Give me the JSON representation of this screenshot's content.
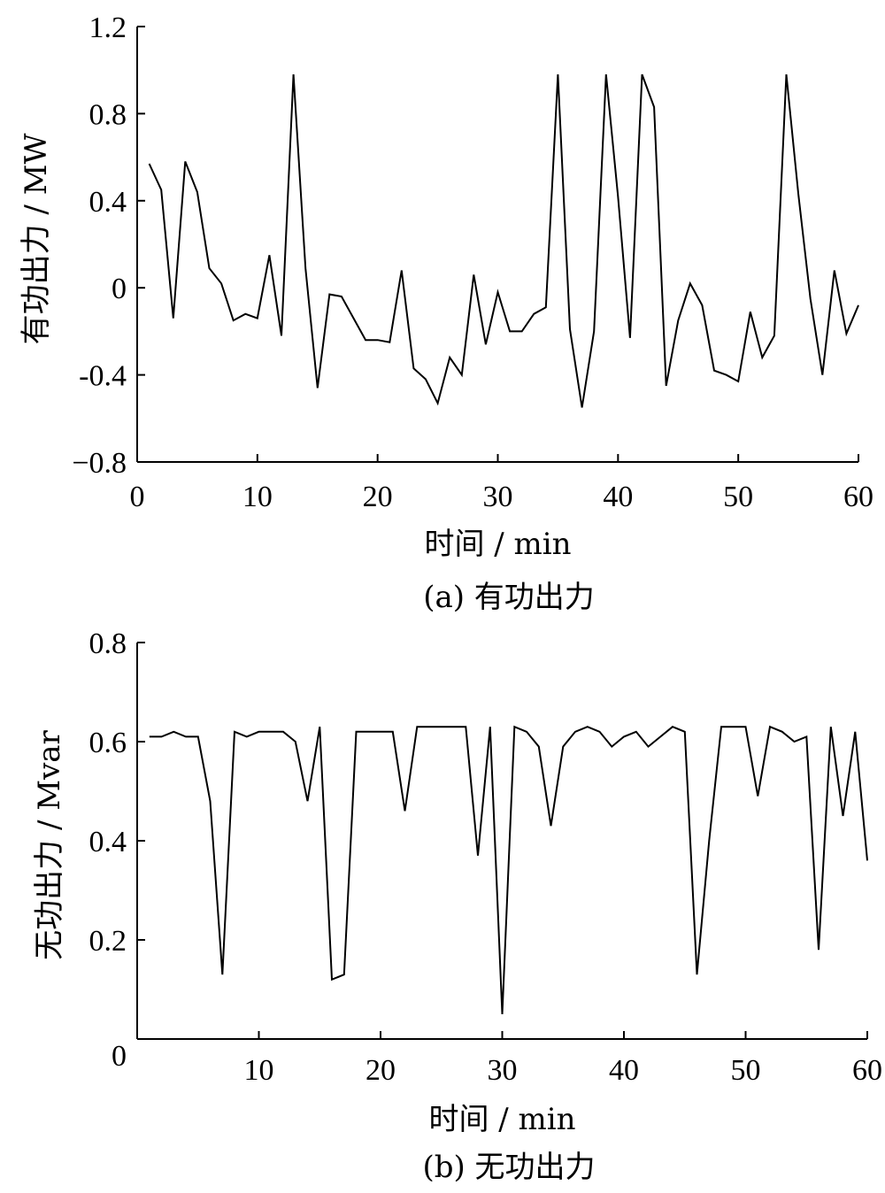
{
  "chart_data": [
    {
      "type": "line",
      "caption": "(a)  有功出力",
      "xlabel": "时间 / min",
      "ylabel": "有功出力 / MW",
      "xlim": [
        0,
        60
      ],
      "ylim": [
        -0.8,
        1.2
      ],
      "xticks": [
        0,
        10,
        20,
        30,
        40,
        50,
        60
      ],
      "xtick_labels": [
        "0",
        "10",
        "20",
        "30",
        "40",
        "50",
        "60"
      ],
      "yticks": [
        -0.8,
        -0.4,
        0,
        0.4,
        0.8,
        1.2
      ],
      "ytick_labels": [
        "−0.8",
        "-0.4",
        "0",
        "0.4",
        "0.8",
        "1.2"
      ],
      "grid": false,
      "x": [
        1,
        2,
        3,
        4,
        5,
        6,
        7,
        8,
        9,
        10,
        11,
        12,
        13,
        14,
        15,
        16,
        17,
        18,
        19,
        20,
        21,
        22,
        23,
        24,
        25,
        26,
        27,
        28,
        29,
        30,
        31,
        32,
        33,
        34,
        35,
        36,
        37,
        38,
        39,
        40,
        41,
        42,
        43,
        44,
        45,
        46,
        47,
        48,
        49,
        50,
        51,
        52,
        53,
        54,
        55,
        56,
        57,
        58,
        59,
        60
      ],
      "values": [
        0.57,
        0.45,
        -0.14,
        0.58,
        0.44,
        0.09,
        0.02,
        -0.15,
        -0.12,
        -0.14,
        0.15,
        -0.22,
        0.98,
        0.09,
        -0.46,
        -0.03,
        -0.04,
        -0.14,
        -0.24,
        -0.24,
        -0.25,
        0.08,
        -0.37,
        -0.42,
        -0.53,
        -0.32,
        -0.4,
        0.06,
        -0.26,
        -0.02,
        -0.2,
        -0.2,
        -0.12,
        -0.09,
        0.98,
        -0.19,
        -0.55,
        -0.2,
        0.98,
        0.42,
        -0.23,
        0.98,
        0.83,
        -0.45,
        -0.15,
        0.02,
        -0.08,
        -0.38,
        -0.4,
        -0.43,
        -0.11,
        -0.32,
        -0.22,
        0.98,
        0.43,
        -0.05,
        -0.4,
        0.08,
        -0.21,
        -0.08
      ]
    },
    {
      "type": "line",
      "caption": "(b)  无功出力",
      "xlabel": "时间 / min",
      "ylabel": "无功出力 / Mvar",
      "xlim": [
        0,
        60
      ],
      "ylim": [
        0,
        0.8
      ],
      "xticks": [
        0,
        10,
        20,
        30,
        40,
        50,
        60
      ],
      "xtick_labels": [
        "0",
        "10",
        "20",
        "30",
        "40",
        "50",
        "60"
      ],
      "yticks": [
        0,
        0.2,
        0.4,
        0.6,
        0.8
      ],
      "ytick_labels": [
        "0",
        "0.2",
        "0.4",
        "0.6",
        "0.8"
      ],
      "grid": false,
      "x": [
        1,
        2,
        3,
        4,
        5,
        6,
        7,
        8,
        9,
        10,
        11,
        12,
        13,
        14,
        15,
        16,
        17,
        18,
        19,
        20,
        21,
        22,
        23,
        24,
        25,
        26,
        27,
        28,
        29,
        30,
        31,
        32,
        33,
        34,
        35,
        36,
        37,
        38,
        39,
        40,
        41,
        42,
        43,
        44,
        45,
        46,
        47,
        48,
        49,
        50,
        51,
        52,
        53,
        54,
        55,
        56,
        57,
        58,
        59,
        60
      ],
      "values": [
        0.61,
        0.61,
        0.62,
        0.61,
        0.61,
        0.48,
        0.13,
        0.62,
        0.61,
        0.62,
        0.62,
        0.62,
        0.6,
        0.48,
        0.63,
        0.12,
        0.13,
        0.62,
        0.62,
        0.62,
        0.62,
        0.46,
        0.63,
        0.63,
        0.63,
        0.63,
        0.63,
        0.37,
        0.63,
        0.05,
        0.63,
        0.62,
        0.59,
        0.43,
        0.59,
        0.62,
        0.63,
        0.62,
        0.59,
        0.61,
        0.62,
        0.59,
        0.61,
        0.63,
        0.62,
        0.13,
        0.4,
        0.63,
        0.63,
        0.63,
        0.49,
        0.63,
        0.62,
        0.6,
        0.61,
        0.18,
        0.63,
        0.45,
        0.62,
        0.36
      ]
    }
  ]
}
